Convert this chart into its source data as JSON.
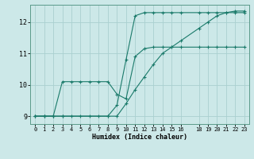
{
  "xlabel": "Humidex (Indice chaleur)",
  "bg_color": "#cce8e8",
  "grid_color": "#aad0d0",
  "line_color": "#1a7a6a",
  "xlim": [
    -0.5,
    23.5
  ],
  "ylim": [
    8.75,
    12.55
  ],
  "xticks": [
    0,
    1,
    2,
    3,
    4,
    5,
    6,
    7,
    8,
    9,
    10,
    11,
    12,
    13,
    14,
    15,
    16,
    18,
    19,
    20,
    21,
    22,
    23
  ],
  "yticks": [
    9,
    10,
    11,
    12
  ],
  "line1_x": [
    0,
    1,
    2,
    3,
    4,
    5,
    6,
    7,
    8,
    9,
    10,
    11,
    12,
    13,
    14,
    15,
    16,
    18,
    19,
    20,
    21,
    22,
    23
  ],
  "line1_y": [
    9.0,
    9.0,
    9.0,
    9.0,
    9.0,
    9.0,
    9.0,
    9.0,
    9.0,
    9.0,
    9.4,
    9.85,
    10.25,
    10.65,
    11.0,
    11.2,
    11.4,
    11.8,
    12.0,
    12.2,
    12.3,
    12.35,
    12.35
  ],
  "line2_x": [
    0,
    1,
    2,
    3,
    4,
    5,
    6,
    7,
    8,
    9,
    10,
    11,
    12,
    13,
    14,
    15,
    16,
    18,
    19,
    20,
    21,
    22,
    23
  ],
  "line2_y": [
    9.0,
    9.0,
    9.0,
    10.1,
    10.1,
    10.1,
    10.1,
    10.1,
    10.1,
    9.7,
    9.55,
    10.9,
    11.15,
    11.2,
    11.2,
    11.2,
    11.2,
    11.2,
    11.2,
    11.2,
    11.2,
    11.2,
    11.2
  ],
  "line3_x": [
    0,
    1,
    2,
    3,
    8,
    9,
    10,
    11,
    12,
    13,
    14,
    15,
    16,
    18,
    19,
    20,
    21,
    22,
    23
  ],
  "line3_y": [
    9.0,
    9.0,
    9.0,
    9.0,
    9.0,
    9.35,
    10.8,
    12.2,
    12.3,
    12.3,
    12.3,
    12.3,
    12.3,
    12.3,
    12.3,
    12.3,
    12.3,
    12.3,
    12.3
  ]
}
